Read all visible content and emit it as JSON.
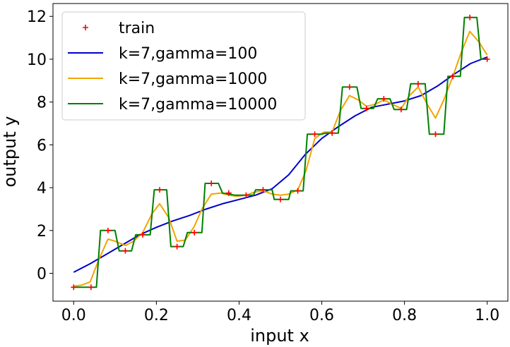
{
  "chart_data": {
    "type": "line",
    "xlabel": "input x",
    "ylabel": "output y",
    "xlim": [
      -0.05,
      1.05
    ],
    "ylim": [
      -1.3,
      12.6
    ],
    "xticks": [
      0.0,
      0.2,
      0.4,
      0.6,
      0.8,
      1.0
    ],
    "xtick_labels": [
      "0.0",
      "0.2",
      "0.4",
      "0.6",
      "0.8",
      "1.0"
    ],
    "yticks": [
      0,
      2,
      4,
      6,
      8,
      10,
      12
    ],
    "ytick_labels": [
      "0",
      "2",
      "4",
      "6",
      "8",
      "10",
      "12"
    ],
    "grid": false,
    "legend_position": "top-left",
    "train": {
      "name": "train",
      "color": "#ff0000",
      "marker": "+",
      "x": [
        0.0,
        0.042,
        0.083,
        0.125,
        0.167,
        0.208,
        0.25,
        0.292,
        0.333,
        0.375,
        0.417,
        0.458,
        0.5,
        0.542,
        0.583,
        0.625,
        0.667,
        0.708,
        0.75,
        0.792,
        0.833,
        0.875,
        0.917,
        0.958,
        1.0
      ],
      "y": [
        -0.65,
        -0.65,
        2.0,
        1.05,
        1.8,
        3.9,
        1.25,
        1.9,
        4.2,
        3.75,
        3.65,
        3.9,
        3.45,
        3.85,
        6.5,
        6.55,
        8.7,
        7.7,
        8.15,
        7.65,
        8.85,
        6.5,
        9.2,
        11.95,
        10.0
      ]
    },
    "series": [
      {
        "name": "k=7,gamma=100",
        "color": "#0000cc",
        "x": [
          0.0,
          0.04,
          0.08,
          0.12,
          0.16,
          0.2,
          0.24,
          0.28,
          0.32,
          0.36,
          0.4,
          0.44,
          0.48,
          0.52,
          0.56,
          0.6,
          0.64,
          0.68,
          0.72,
          0.76,
          0.8,
          0.84,
          0.88,
          0.92,
          0.96,
          1.0
        ],
        "y": [
          0.05,
          0.45,
          0.9,
          1.35,
          1.8,
          2.15,
          2.45,
          2.7,
          3.0,
          3.25,
          3.45,
          3.65,
          3.95,
          4.6,
          5.55,
          6.3,
          6.85,
          7.35,
          7.75,
          7.9,
          8.05,
          8.3,
          8.75,
          9.3,
          9.8,
          10.1
        ]
      },
      {
        "name": "k=7,gamma=1000",
        "color": "#f0a500",
        "x": [
          0.0,
          0.02,
          0.04,
          0.06,
          0.083,
          0.1,
          0.125,
          0.145,
          0.167,
          0.19,
          0.208,
          0.23,
          0.25,
          0.27,
          0.292,
          0.31,
          0.333,
          0.355,
          0.375,
          0.395,
          0.417,
          0.438,
          0.458,
          0.48,
          0.5,
          0.52,
          0.542,
          0.562,
          0.583,
          0.605,
          0.625,
          0.645,
          0.667,
          0.688,
          0.708,
          0.73,
          0.75,
          0.77,
          0.792,
          0.812,
          0.833,
          0.855,
          0.875,
          0.895,
          0.917,
          0.937,
          0.958,
          0.98,
          1.0
        ],
        "y": [
          -0.6,
          -0.55,
          -0.4,
          0.6,
          1.6,
          1.5,
          1.3,
          1.5,
          1.9,
          2.8,
          3.25,
          2.6,
          1.5,
          1.55,
          2.2,
          3.0,
          3.7,
          3.75,
          3.65,
          3.6,
          3.65,
          3.8,
          3.85,
          3.7,
          3.65,
          3.7,
          3.9,
          4.8,
          6.3,
          6.6,
          6.6,
          7.6,
          8.3,
          8.1,
          7.8,
          7.9,
          8.1,
          7.9,
          7.7,
          8.3,
          8.7,
          7.9,
          7.25,
          8.1,
          9.2,
          10.3,
          11.3,
          10.8,
          10.2
        ]
      },
      {
        "name": "k=7,gamma=10000",
        "color": "#008000",
        "x": [
          0.0,
          0.055,
          0.065,
          0.1,
          0.11,
          0.14,
          0.15,
          0.185,
          0.195,
          0.225,
          0.235,
          0.265,
          0.275,
          0.31,
          0.318,
          0.35,
          0.36,
          0.39,
          0.435,
          0.44,
          0.48,
          0.485,
          0.52,
          0.525,
          0.555,
          0.565,
          0.6,
          0.61,
          0.64,
          0.65,
          0.685,
          0.695,
          0.725,
          0.735,
          0.765,
          0.775,
          0.805,
          0.815,
          0.85,
          0.86,
          0.895,
          0.905,
          0.935,
          0.945,
          0.975,
          0.985,
          1.0
        ],
        "y": [
          -0.65,
          -0.65,
          2.0,
          2.0,
          1.05,
          1.05,
          1.8,
          1.8,
          3.9,
          3.9,
          1.25,
          1.25,
          1.9,
          1.9,
          4.2,
          4.2,
          3.75,
          3.65,
          3.65,
          3.9,
          3.9,
          3.45,
          3.45,
          3.85,
          3.85,
          6.5,
          6.5,
          6.55,
          6.55,
          8.7,
          8.7,
          7.7,
          7.7,
          8.15,
          8.15,
          7.65,
          7.65,
          8.85,
          8.85,
          6.5,
          6.5,
          9.2,
          9.2,
          11.95,
          11.95,
          10.0,
          10.0
        ]
      }
    ]
  }
}
